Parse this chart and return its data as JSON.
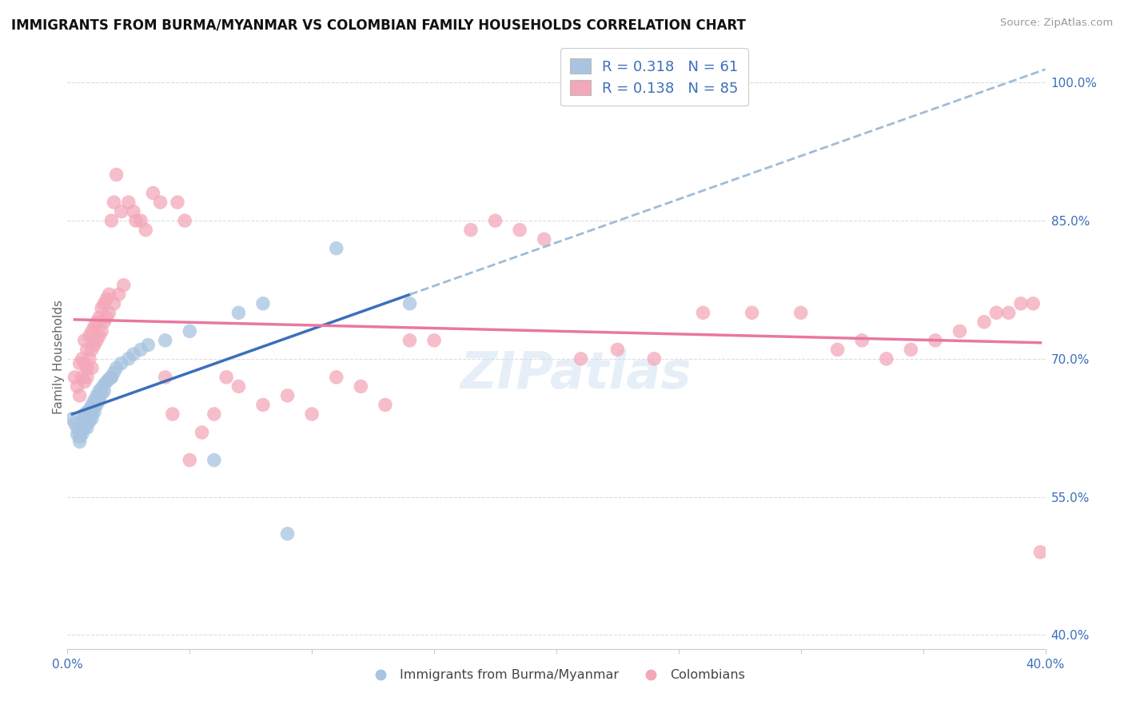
{
  "title": "IMMIGRANTS FROM BURMA/MYANMAR VS COLOMBIAN FAMILY HOUSEHOLDS CORRELATION CHART",
  "source": "Source: ZipAtlas.com",
  "ylabel": "Family Households",
  "ytick_labels": [
    "100.0%",
    "85.0%",
    "70.0%",
    "55.0%",
    "40.0%"
  ],
  "ytick_values": [
    1.0,
    0.85,
    0.7,
    0.55,
    0.4
  ],
  "xlim": [
    0.0,
    0.4
  ],
  "ylim": [
    0.385,
    1.02
  ],
  "r_burma": 0.318,
  "n_burma": 61,
  "r_colombian": 0.138,
  "n_colombian": 85,
  "color_burma": "#a8c4e0",
  "color_colombian": "#f4a7b9",
  "trendline_burma_solid_color": "#3b6fba",
  "trendline_burma_dashed_color": "#a0bcd8",
  "trendline_colombian_color": "#e878a0",
  "watermark": "ZIPatlas",
  "background_color": "#ffffff",
  "grid_color": "#dddddd",
  "burma_x": [
    0.002,
    0.003,
    0.004,
    0.004,
    0.005,
    0.005,
    0.005,
    0.006,
    0.006,
    0.006,
    0.006,
    0.007,
    0.007,
    0.007,
    0.007,
    0.007,
    0.008,
    0.008,
    0.008,
    0.008,
    0.008,
    0.009,
    0.009,
    0.009,
    0.009,
    0.01,
    0.01,
    0.01,
    0.01,
    0.011,
    0.011,
    0.011,
    0.011,
    0.012,
    0.012,
    0.012,
    0.013,
    0.013,
    0.013,
    0.014,
    0.014,
    0.015,
    0.015,
    0.016,
    0.017,
    0.018,
    0.019,
    0.02,
    0.022,
    0.025,
    0.027,
    0.03,
    0.033,
    0.04,
    0.05,
    0.06,
    0.07,
    0.08,
    0.09,
    0.11,
    0.14
  ],
  "burma_y": [
    0.635,
    0.63,
    0.625,
    0.618,
    0.62,
    0.615,
    0.61,
    0.632,
    0.628,
    0.622,
    0.618,
    0.64,
    0.638,
    0.635,
    0.63,
    0.625,
    0.642,
    0.638,
    0.635,
    0.63,
    0.625,
    0.645,
    0.64,
    0.638,
    0.632,
    0.65,
    0.645,
    0.64,
    0.635,
    0.655,
    0.65,
    0.648,
    0.642,
    0.66,
    0.655,
    0.65,
    0.665,
    0.66,
    0.655,
    0.668,
    0.662,
    0.672,
    0.665,
    0.675,
    0.678,
    0.68,
    0.685,
    0.69,
    0.695,
    0.7,
    0.705,
    0.71,
    0.715,
    0.72,
    0.73,
    0.59,
    0.75,
    0.76,
    0.51,
    0.82,
    0.76
  ],
  "colombian_x": [
    0.003,
    0.004,
    0.005,
    0.005,
    0.006,
    0.006,
    0.007,
    0.007,
    0.007,
    0.008,
    0.008,
    0.008,
    0.009,
    0.009,
    0.01,
    0.01,
    0.01,
    0.011,
    0.011,
    0.012,
    0.012,
    0.013,
    0.013,
    0.014,
    0.014,
    0.015,
    0.015,
    0.016,
    0.016,
    0.017,
    0.017,
    0.018,
    0.018,
    0.019,
    0.019,
    0.02,
    0.021,
    0.022,
    0.023,
    0.025,
    0.027,
    0.028,
    0.03,
    0.032,
    0.035,
    0.038,
    0.04,
    0.043,
    0.045,
    0.048,
    0.05,
    0.055,
    0.06,
    0.065,
    0.07,
    0.08,
    0.09,
    0.1,
    0.11,
    0.12,
    0.13,
    0.14,
    0.15,
    0.165,
    0.175,
    0.185,
    0.195,
    0.21,
    0.225,
    0.24,
    0.26,
    0.28,
    0.3,
    0.315,
    0.325,
    0.335,
    0.345,
    0.355,
    0.365,
    0.375,
    0.38,
    0.385,
    0.39,
    0.395,
    0.398
  ],
  "colombian_y": [
    0.68,
    0.67,
    0.695,
    0.66,
    0.7,
    0.68,
    0.72,
    0.695,
    0.675,
    0.71,
    0.69,
    0.68,
    0.725,
    0.7,
    0.73,
    0.71,
    0.69,
    0.735,
    0.715,
    0.74,
    0.72,
    0.745,
    0.725,
    0.755,
    0.73,
    0.76,
    0.74,
    0.765,
    0.745,
    0.77,
    0.75,
    0.85,
    0.68,
    0.87,
    0.76,
    0.9,
    0.77,
    0.86,
    0.78,
    0.87,
    0.86,
    0.85,
    0.85,
    0.84,
    0.88,
    0.87,
    0.68,
    0.64,
    0.87,
    0.85,
    0.59,
    0.62,
    0.64,
    0.68,
    0.67,
    0.65,
    0.66,
    0.64,
    0.68,
    0.67,
    0.65,
    0.72,
    0.72,
    0.84,
    0.85,
    0.84,
    0.83,
    0.7,
    0.71,
    0.7,
    0.75,
    0.75,
    0.75,
    0.71,
    0.72,
    0.7,
    0.71,
    0.72,
    0.73,
    0.74,
    0.75,
    0.75,
    0.76,
    0.76,
    0.49
  ],
  "legend_r_text": "R = 0.318   N = 61",
  "legend_c_text": "R = 0.138   N = 85",
  "legend_burma_label": "Immigrants from Burma/Myanmar",
  "legend_colombian_label": "Colombians"
}
